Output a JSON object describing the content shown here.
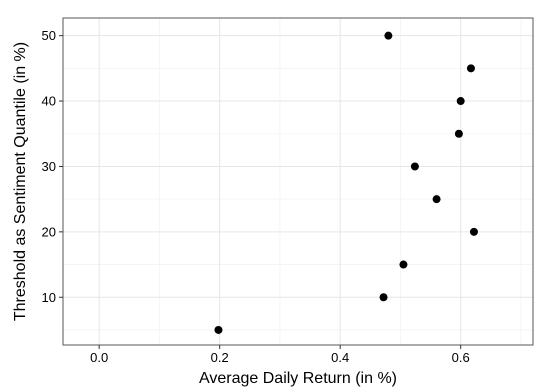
{
  "chart_data": {
    "type": "scatter",
    "title": "",
    "xlabel": "Average Daily Return (in %)",
    "ylabel": "Threshold as Sentiment Quantile (in %)",
    "xlim": [
      -0.06,
      0.72
    ],
    "ylim": [
      2.7,
      52.7
    ],
    "x_ticks": [
      0.0,
      0.2,
      0.4,
      0.6
    ],
    "x_tick_labels": [
      "0.0",
      "0.2",
      "0.4",
      "0.6"
    ],
    "y_ticks": [
      10,
      20,
      30,
      40,
      50
    ],
    "y_tick_labels": [
      "10",
      "20",
      "30",
      "40",
      "50"
    ],
    "grid": true,
    "point_color": "#000000",
    "grid_major_color": "#e6e6e6",
    "grid_minor_color": "#f3f3f3",
    "points": [
      {
        "x": 0.198,
        "y": 5
      },
      {
        "x": 0.472,
        "y": 10
      },
      {
        "x": 0.505,
        "y": 15
      },
      {
        "x": 0.622,
        "y": 20
      },
      {
        "x": 0.56,
        "y": 25
      },
      {
        "x": 0.524,
        "y": 30
      },
      {
        "x": 0.597,
        "y": 35
      },
      {
        "x": 0.6,
        "y": 40
      },
      {
        "x": 0.617,
        "y": 45
      },
      {
        "x": 0.48,
        "y": 50
      }
    ]
  }
}
